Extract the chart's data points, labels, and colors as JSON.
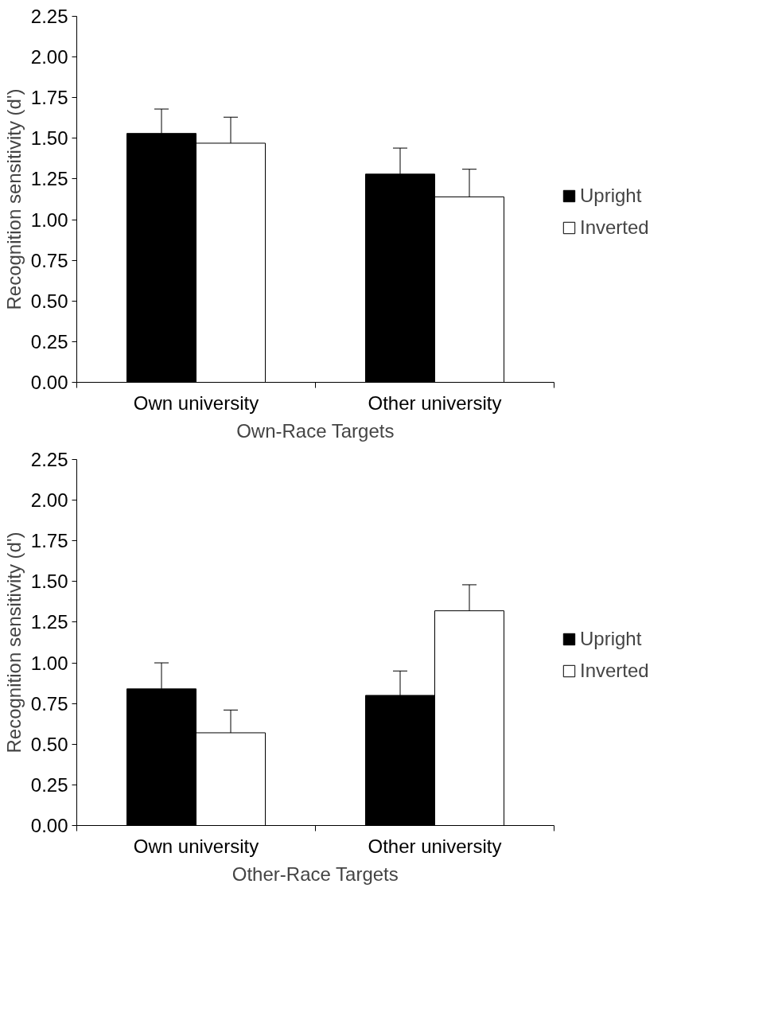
{
  "chart_data": [
    {
      "type": "bar",
      "xlabel": "Own-Race Targets",
      "ylabel": "Recognition sensitivity (d')",
      "categories": [
        "Own university",
        "Other university"
      ],
      "series": [
        {
          "name": "Upright",
          "color": "#000000",
          "values": [
            1.53,
            1.28
          ],
          "errors": [
            [
              1.53,
              1.68
            ],
            [
              1.28,
              1.44
            ]
          ]
        },
        {
          "name": "Inverted",
          "color": "#ffffff",
          "values": [
            1.47,
            1.14
          ],
          "errors": [
            [
              1.47,
              1.63
            ],
            [
              1.14,
              1.31
            ]
          ]
        }
      ],
      "ylim": [
        0,
        2.25
      ],
      "yticks": [
        {
          "value": 0,
          "label": "0.00"
        },
        {
          "value": 0.25,
          "label": "0.25"
        },
        {
          "value": 0.5,
          "label": "0.50"
        },
        {
          "value": 0.75,
          "label": "0.75"
        },
        {
          "value": 1,
          "label": "1.00"
        },
        {
          "value": 1.25,
          "label": "1.25"
        },
        {
          "value": 1.5,
          "label": "1.50"
        },
        {
          "value": 1.75,
          "label": "1.75"
        },
        {
          "value": 2,
          "label": "2.00"
        },
        {
          "value": 2.25,
          "label": "2.25"
        }
      ],
      "legend": "right"
    },
    {
      "type": "bar",
      "xlabel": "Other-Race Targets",
      "ylabel": "Recognition sensitivity (d')",
      "categories": [
        "Own university",
        "Other university"
      ],
      "series": [
        {
          "name": "Upright",
          "color": "#000000",
          "values": [
            0.84,
            0.8
          ],
          "errors": [
            [
              0.84,
              1.0
            ],
            [
              0.8,
              0.95
            ]
          ]
        },
        {
          "name": "Inverted",
          "color": "#ffffff",
          "values": [
            0.57,
            1.32
          ],
          "errors": [
            [
              0.57,
              0.71
            ],
            [
              1.32,
              1.48
            ]
          ]
        }
      ],
      "ylim": [
        0,
        2.25
      ],
      "yticks": [
        {
          "value": 0,
          "label": "0.00"
        },
        {
          "value": 0.25,
          "label": "0.25"
        },
        {
          "value": 0.5,
          "label": "0.50"
        },
        {
          "value": 0.75,
          "label": "0.75"
        },
        {
          "value": 1,
          "label": "1.00"
        },
        {
          "value": 1.25,
          "label": "1.25"
        },
        {
          "value": 1.5,
          "label": "1.50"
        },
        {
          "value": 1.75,
          "label": "1.75"
        },
        {
          "value": 2,
          "label": "2.00"
        },
        {
          "value": 2.25,
          "label": "2.25"
        }
      ],
      "legend": "right"
    }
  ]
}
